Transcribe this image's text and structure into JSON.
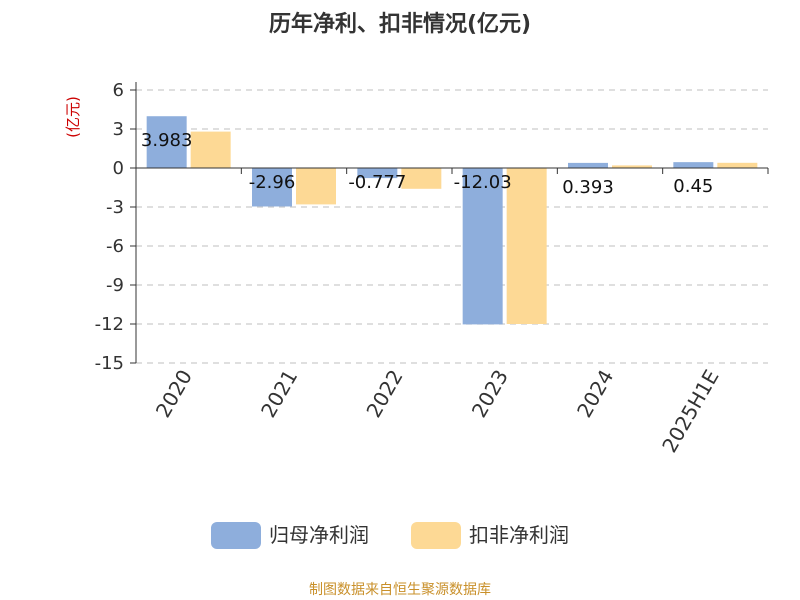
{
  "chart_data": {
    "type": "bar",
    "title": "历年净利、扣非情况(亿元)",
    "unit_label": "(亿元)",
    "categories": [
      "2020",
      "2021",
      "2022",
      "2023",
      "2024",
      "2025H1E"
    ],
    "series": [
      {
        "name": "归母净利润",
        "color": "#8eaedc",
        "values": [
          3.983,
          -2.96,
          -0.777,
          -12.03,
          0.393,
          0.45
        ],
        "labels": [
          "3.983",
          "-2.96",
          "-0.777",
          "-12.03",
          "0.393",
          "0.45"
        ]
      },
      {
        "name": "扣非净利润",
        "color": "#fdd995",
        "values": [
          2.8,
          -2.8,
          -1.6,
          -12.0,
          0.2,
          0.4
        ]
      }
    ],
    "yticks": [
      6,
      3,
      0,
      -3,
      -6,
      -9,
      -12,
      -15
    ],
    "ylim": [
      -15,
      6
    ],
    "grid": true,
    "legend_position": "bottom",
    "source": "制图数据来自恒生聚源数据库",
    "colors": {
      "unit": "#cc0000",
      "source": "#c9902a",
      "text": "#333333",
      "grid": "#cccccc"
    }
  }
}
